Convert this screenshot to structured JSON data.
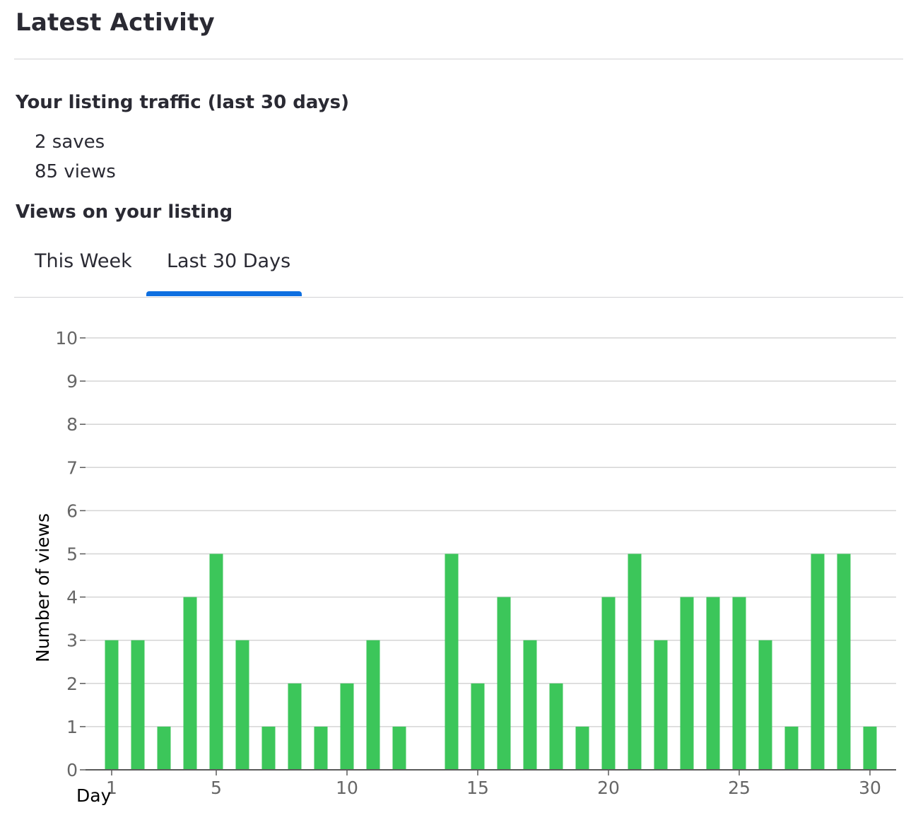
{
  "header": {
    "title": "Latest Activity"
  },
  "traffic": {
    "heading": "Your listing traffic (last 30 days)",
    "saves": "2 saves",
    "views": "85 views"
  },
  "views_section": {
    "heading": "Views on your listing",
    "tabs": [
      {
        "label": "This Week",
        "active": false
      },
      {
        "label": "Last 30 Days",
        "active": true
      }
    ]
  },
  "colors": {
    "bar": "#3cc65a",
    "accent": "#0e6fe0",
    "grid": "#d5d5d5",
    "axis": "#5a5a5a"
  },
  "chart_data": {
    "type": "bar",
    "xlabel": "Day",
    "ylabel": "Number of views",
    "ylim": [
      0,
      10
    ],
    "xlim": [
      0,
      31
    ],
    "yticks": [
      0,
      1,
      2,
      3,
      4,
      5,
      6,
      7,
      8,
      9,
      10
    ],
    "xticks": [
      1,
      5,
      10,
      15,
      20,
      25,
      30
    ],
    "grid": true,
    "x": [
      1,
      2,
      3,
      4,
      5,
      6,
      7,
      8,
      9,
      10,
      11,
      12,
      13,
      14,
      15,
      16,
      17,
      18,
      19,
      20,
      21,
      22,
      23,
      24,
      25,
      26,
      27,
      28,
      29,
      30
    ],
    "values": [
      3,
      3,
      1,
      4,
      5,
      3,
      1,
      2,
      1,
      2,
      3,
      1,
      0,
      5,
      2,
      4,
      3,
      2,
      1,
      4,
      5,
      3,
      4,
      4,
      4,
      3,
      1,
      5,
      5,
      1
    ]
  }
}
